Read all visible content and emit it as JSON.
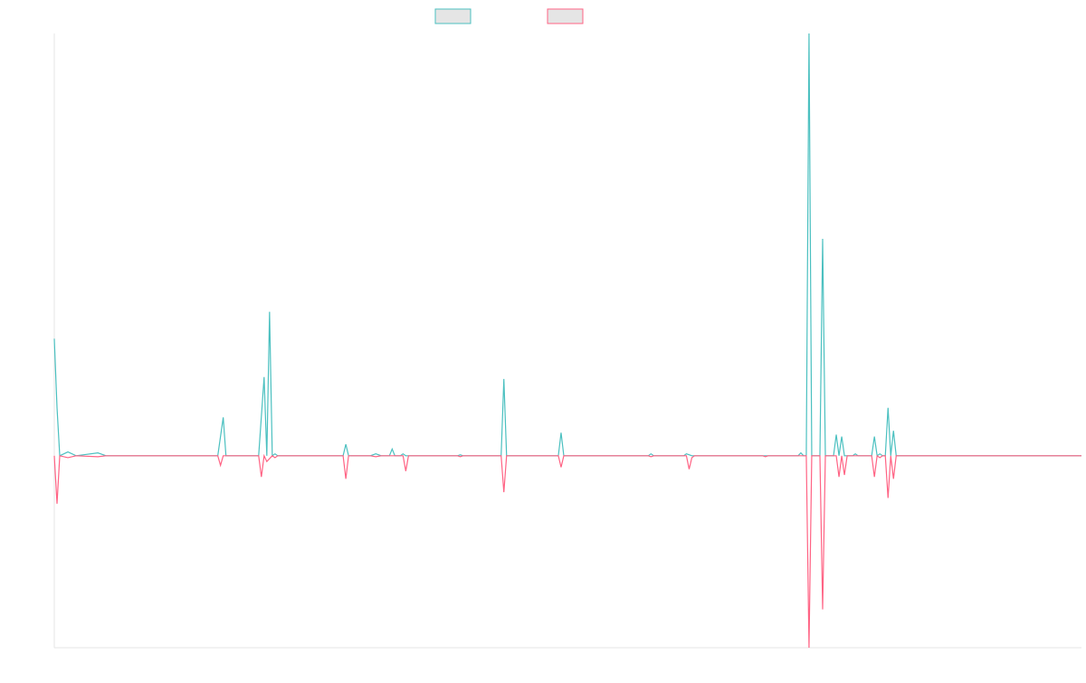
{
  "chart_data": {
    "type": "line",
    "title": "",
    "xlabel": "",
    "ylabel": "",
    "grid": false,
    "legend": "top-center",
    "ylim": [
      -1,
      2.2
    ],
    "zero_value": 0,
    "colors": {
      "series_a": "#4bc0c0",
      "series_b": "#ff6384",
      "legend_fill": "#e5e5e5",
      "axis": "#e5e5e5"
    },
    "series": [
      {
        "name": "",
        "color": "#4bc0c0",
        "points": [
          [
            0,
            0.61
          ],
          [
            1,
            0.25
          ],
          [
            2,
            0
          ],
          [
            5,
            0.02
          ],
          [
            8,
            0
          ],
          [
            16,
            0.015
          ],
          [
            19,
            0
          ],
          [
            60,
            0
          ],
          [
            62,
            0.2
          ],
          [
            63,
            0
          ],
          [
            75,
            0
          ],
          [
            77,
            0.41
          ],
          [
            78,
            0
          ],
          [
            79,
            0.75
          ],
          [
            80,
            0
          ],
          [
            81,
            0.01
          ],
          [
            82,
            0
          ],
          [
            106,
            0
          ],
          [
            107,
            0.06
          ],
          [
            108,
            0
          ],
          [
            116,
            0
          ],
          [
            118,
            0.01
          ],
          [
            120,
            0
          ],
          [
            123,
            0
          ],
          [
            124,
            0.035
          ],
          [
            125,
            0
          ],
          [
            127,
            0
          ],
          [
            128,
            0.01
          ],
          [
            129,
            0
          ],
          [
            148,
            0
          ],
          [
            149,
            0.005
          ],
          [
            150,
            0
          ],
          [
            164,
            0
          ],
          [
            165,
            0.4
          ],
          [
            166,
            0
          ],
          [
            185,
            0
          ],
          [
            186,
            0.12
          ],
          [
            187,
            0
          ],
          [
            218,
            0
          ],
          [
            219,
            0.01
          ],
          [
            220,
            0
          ],
          [
            231,
            0
          ],
          [
            232,
            0.01
          ],
          [
            234,
            0
          ],
          [
            247,
            0
          ],
          [
            248,
            0
          ],
          [
            260,
            0
          ],
          [
            273,
            0
          ],
          [
            274,
            0.015
          ],
          [
            275,
            0
          ],
          [
            276,
            0
          ],
          [
            277,
            2.2
          ],
          [
            278,
            0
          ],
          [
            281,
            0
          ],
          [
            282,
            1.13
          ],
          [
            283,
            0
          ],
          [
            286,
            0
          ],
          [
            287,
            0.11
          ],
          [
            288,
            0
          ],
          [
            289,
            0.1
          ],
          [
            290,
            0
          ],
          [
            293,
            0
          ],
          [
            294,
            0.01
          ],
          [
            295,
            0
          ],
          [
            300,
            0
          ],
          [
            301,
            0.1
          ],
          [
            302,
            0
          ],
          [
            303,
            0.01
          ],
          [
            304,
            0
          ],
          [
            305,
            0
          ],
          [
            306,
            0.25
          ],
          [
            307,
            0
          ],
          [
            308,
            0.13
          ],
          [
            309,
            0
          ],
          [
            377,
            0
          ]
        ]
      },
      {
        "name": "",
        "color": "#ff6384",
        "points": [
          [
            0,
            0
          ],
          [
            1,
            -0.25
          ],
          [
            2,
            0
          ],
          [
            5,
            -0.01
          ],
          [
            8,
            0
          ],
          [
            16,
            -0.005
          ],
          [
            19,
            0
          ],
          [
            60,
            0
          ],
          [
            61,
            -0.05
          ],
          [
            62,
            0
          ],
          [
            75,
            0
          ],
          [
            76,
            -0.11
          ],
          [
            77,
            0
          ],
          [
            78,
            -0.03
          ],
          [
            80,
            0
          ],
          [
            81,
            -0.01
          ],
          [
            82,
            0
          ],
          [
            106,
            0
          ],
          [
            107,
            -0.12
          ],
          [
            108,
            0
          ],
          [
            116,
            0
          ],
          [
            118,
            -0.005
          ],
          [
            120,
            0
          ],
          [
            128,
            0
          ],
          [
            129,
            -0.08
          ],
          [
            130,
            0
          ],
          [
            148,
            0
          ],
          [
            149,
            -0.005
          ],
          [
            150,
            0
          ],
          [
            164,
            0
          ],
          [
            165,
            -0.19
          ],
          [
            166,
            0
          ],
          [
            185,
            0
          ],
          [
            186,
            -0.06
          ],
          [
            187,
            0
          ],
          [
            218,
            0
          ],
          [
            219,
            -0.005
          ],
          [
            220,
            0
          ],
          [
            232,
            0
          ],
          [
            233,
            -0.07
          ],
          [
            234,
            -0.01
          ],
          [
            235,
            0
          ],
          [
            260,
            0
          ],
          [
            261,
            -0.005
          ],
          [
            262,
            0
          ],
          [
            276,
            0
          ],
          [
            277,
            -1.0
          ],
          [
            278,
            0
          ],
          [
            281,
            0
          ],
          [
            282,
            -0.8
          ],
          [
            283,
            0
          ],
          [
            287,
            0
          ],
          [
            288,
            -0.11
          ],
          [
            289,
            0
          ],
          [
            290,
            -0.1
          ],
          [
            291,
            0
          ],
          [
            300,
            0
          ],
          [
            301,
            -0.11
          ],
          [
            302,
            0
          ],
          [
            303,
            -0.01
          ],
          [
            304,
            0
          ],
          [
            305,
            0
          ],
          [
            306,
            -0.22
          ],
          [
            307,
            0
          ],
          [
            308,
            -0.12
          ],
          [
            309,
            0
          ],
          [
            377,
            0
          ]
        ]
      }
    ],
    "xlim": [
      0,
      377
    ]
  }
}
